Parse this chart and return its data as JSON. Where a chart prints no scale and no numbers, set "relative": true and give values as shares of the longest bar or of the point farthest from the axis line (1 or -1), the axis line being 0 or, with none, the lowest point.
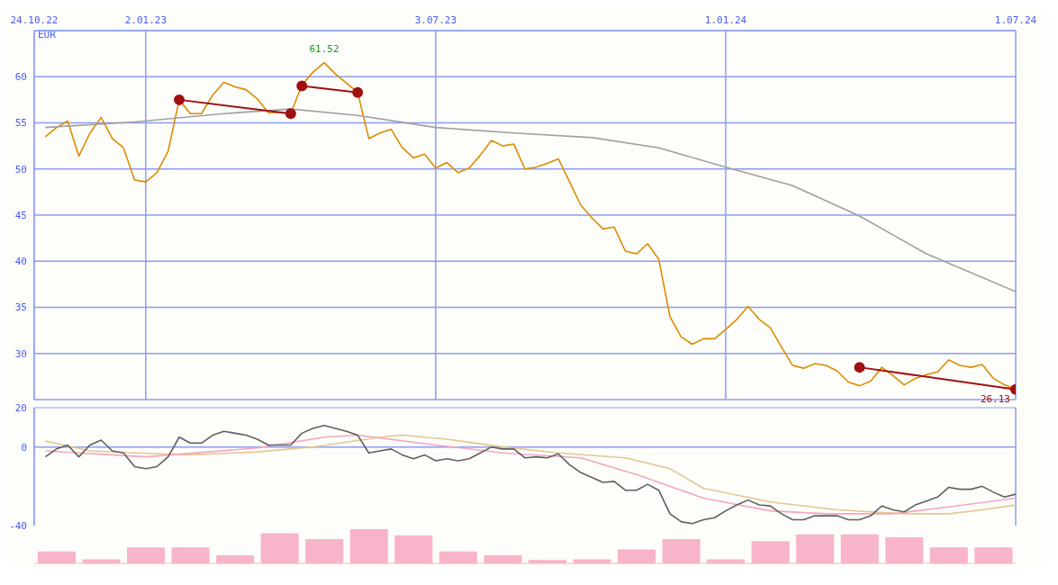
{
  "chart_data": [
    {
      "type": "line",
      "ylabel": "EUR",
      "xlim": [
        "2022-10-24",
        "2024-07-01"
      ],
      "xticks": [
        {
          "value": "2022-10-24",
          "label": "24.10.22"
        },
        {
          "value": "2023-01-02",
          "label": "2.01.23"
        },
        {
          "value": "2023-07-03",
          "label": "3.07.23"
        },
        {
          "value": "2024-01-01",
          "label": "1.01.24"
        },
        {
          "value": "2024-07-01",
          "label": "1.07.24"
        }
      ],
      "ylim": [
        25,
        65
      ],
      "yticks": [
        30,
        35,
        40,
        45,
        50,
        55,
        60
      ],
      "grid": true,
      "legend": false,
      "x": [
        "2022-10-31",
        "2022-11-07",
        "2022-11-14",
        "2022-11-21",
        "2022-11-28",
        "2022-12-05",
        "2022-12-12",
        "2022-12-19",
        "2022-12-26",
        "2023-01-02",
        "2023-01-09",
        "2023-01-16",
        "2023-01-23",
        "2023-01-30",
        "2023-02-06",
        "2023-02-13",
        "2023-02-20",
        "2023-02-27",
        "2023-03-06",
        "2023-03-13",
        "2023-03-20",
        "2023-03-27",
        "2023-04-03",
        "2023-04-10",
        "2023-04-17",
        "2023-04-24",
        "2023-05-01",
        "2023-05-08",
        "2023-05-15",
        "2023-05-22",
        "2023-05-29",
        "2023-06-05",
        "2023-06-12",
        "2023-06-19",
        "2023-06-26",
        "2023-07-03",
        "2023-07-10",
        "2023-07-17",
        "2023-07-24",
        "2023-07-31",
        "2023-08-07",
        "2023-08-14",
        "2023-08-21",
        "2023-08-28",
        "2023-09-04",
        "2023-09-11",
        "2023-09-18",
        "2023-09-25",
        "2023-10-02",
        "2023-10-09",
        "2023-10-16",
        "2023-10-23",
        "2023-10-30",
        "2023-11-06",
        "2023-11-13",
        "2023-11-20",
        "2023-11-27",
        "2023-12-04",
        "2023-12-11",
        "2023-12-18",
        "2023-12-25",
        "2024-01-01",
        "2024-01-08",
        "2024-01-15",
        "2024-01-22",
        "2024-01-29",
        "2024-02-05",
        "2024-02-12",
        "2024-02-19",
        "2024-02-26",
        "2024-03-04",
        "2024-03-11",
        "2024-03-18",
        "2024-03-25",
        "2024-04-01",
        "2024-04-08",
        "2024-04-15",
        "2024-04-22",
        "2024-04-29",
        "2024-05-06",
        "2024-05-13",
        "2024-05-20",
        "2024-05-27",
        "2024-06-03",
        "2024-06-10",
        "2024-06-17",
        "2024-06-24",
        "2024-07-01"
      ],
      "series": [
        {
          "color": "#dd8c00",
          "marker": "none",
          "values": [
            53.5,
            54.5,
            55.2,
            51.4,
            53.9,
            55.6,
            53.3,
            52.3,
            48.8,
            48.6,
            49.6,
            51.9,
            57.5,
            56.0,
            56.0,
            58.0,
            59.4,
            58.9,
            58.6,
            57.6,
            56.1,
            56.1,
            56.0,
            59.1,
            60.5,
            61.52,
            60.3,
            59.3,
            58.3,
            53.3,
            53.9,
            54.3,
            52.3,
            51.2,
            51.6,
            50.1,
            50.7,
            49.6,
            50.1,
            51.5,
            53.1,
            52.5,
            52.7,
            50.0,
            50.2,
            50.6,
            51.1,
            48.6,
            46.1,
            44.7,
            43.5,
            43.7,
            41.1,
            40.8,
            41.9,
            40.2,
            34.0,
            31.8,
            31.0,
            31.6,
            31.6,
            32.6,
            33.7,
            35.1,
            33.7,
            32.8,
            30.7,
            28.7,
            28.4,
            28.9,
            28.7,
            28.1,
            26.9,
            26.5,
            27.0,
            28.5,
            27.6,
            26.6,
            27.3,
            27.7,
            28.0,
            29.3,
            28.7,
            28.5,
            28.8,
            27.3,
            26.6,
            26.13
          ],
          "value_labels": [
            null,
            null,
            null,
            null,
            null,
            null,
            null,
            null,
            null,
            null,
            null,
            null,
            null,
            null,
            null,
            null,
            null,
            null,
            null,
            null,
            null,
            null,
            null,
            null,
            null,
            "61.52",
            null,
            null,
            null,
            null,
            null,
            null,
            null,
            null,
            null,
            null,
            null,
            null,
            null,
            null,
            null,
            null,
            null,
            null,
            null,
            null,
            null,
            null,
            null,
            null,
            null,
            null,
            null,
            null,
            null,
            null,
            null,
            null,
            null,
            null,
            null,
            null,
            null,
            null,
            null,
            null,
            null,
            null,
            null,
            null,
            null,
            null,
            null,
            null,
            null,
            null,
            null,
            null,
            null,
            null,
            null,
            null,
            null,
            null,
            null,
            null,
            null,
            "26.13"
          ]
        },
        {
          "color": "#a0a0a0",
          "marker": "none",
          "x": [
            "2022-10-31",
            "2022-12-26",
            "2023-02-20",
            "2023-04-03",
            "2023-05-15",
            "2023-07-03",
            "2023-08-21",
            "2023-10-09",
            "2023-11-20",
            "2024-01-01",
            "2024-02-12",
            "2024-03-25",
            "2024-05-06",
            "2024-07-01"
          ],
          "values": [
            54.5,
            55.1,
            56.0,
            56.5,
            55.8,
            54.5,
            53.9,
            53.4,
            52.3,
            50.2,
            48.2,
            44.9,
            40.8,
            36.7
          ]
        },
        {
          "color": "#a01010",
          "marker": "circle",
          "x": [
            "2023-01-23",
            "2023-04-03"
          ],
          "values": [
            57.5,
            56.0
          ]
        },
        {
          "color": "#a01010",
          "marker": "circle",
          "x": [
            "2023-04-10",
            "2023-05-15"
          ],
          "values": [
            59.0,
            58.3
          ]
        },
        {
          "color": "#a01010",
          "marker": "circle",
          "x": [
            "2024-03-25",
            "2024-07-01"
          ],
          "values": [
            28.5,
            26.1
          ]
        }
      ]
    },
    {
      "type": "line",
      "xlim": [
        "2022-10-24",
        "2024-07-01"
      ],
      "xticks": [
        {
          "value": "2023-01-02",
          "label": null
        },
        {
          "value": "2023-07-03",
          "label": null
        },
        {
          "value": "2024-01-01",
          "label": null
        }
      ],
      "ylim": [
        -40,
        20
      ],
      "yticks": [
        -40,
        0,
        20
      ],
      "grid": "x",
      "ref_lines": [
        {
          "axis": "y",
          "value": 0,
          "color": "#8c9cf0"
        }
      ],
      "legend": false,
      "tick_labels": "y",
      "x": [
        "2022-10-31",
        "2022-11-07",
        "2022-11-14",
        "2022-11-21",
        "2022-11-28",
        "2022-12-05",
        "2022-12-12",
        "2022-12-19",
        "2022-12-26",
        "2023-01-02",
        "2023-01-09",
        "2023-01-16",
        "2023-01-23",
        "2023-01-30",
        "2023-02-06",
        "2023-02-13",
        "2023-02-20",
        "2023-02-27",
        "2023-03-06",
        "2023-03-13",
        "2023-03-20",
        "2023-03-27",
        "2023-04-03",
        "2023-04-10",
        "2023-04-17",
        "2023-04-24",
        "2023-05-01",
        "2023-05-08",
        "2023-05-15",
        "2023-05-22",
        "2023-05-29",
        "2023-06-05",
        "2023-06-12",
        "2023-06-19",
        "2023-06-26",
        "2023-07-03",
        "2023-07-10",
        "2023-07-17",
        "2023-07-24",
        "2023-07-31",
        "2023-08-07",
        "2023-08-14",
        "2023-08-21",
        "2023-08-28",
        "2023-09-04",
        "2023-09-11",
        "2023-09-18",
        "2023-09-25",
        "2023-10-02",
        "2023-10-09",
        "2023-10-16",
        "2023-10-23",
        "2023-10-30",
        "2023-11-06",
        "2023-11-13",
        "2023-11-20",
        "2023-11-27",
        "2023-12-04",
        "2023-12-11",
        "2023-12-18",
        "2023-12-25",
        "2024-01-01",
        "2024-01-08",
        "2024-01-15",
        "2024-01-22",
        "2024-01-29",
        "2024-02-05",
        "2024-02-12",
        "2024-02-19",
        "2024-02-26",
        "2024-03-04",
        "2024-03-11",
        "2024-03-18",
        "2024-03-25",
        "2024-04-01",
        "2024-04-08",
        "2024-04-15",
        "2024-04-22",
        "2024-04-29",
        "2024-05-06",
        "2024-05-13",
        "2024-05-20",
        "2024-05-27",
        "2024-06-03",
        "2024-06-10",
        "2024-06-17",
        "2024-06-24",
        "2024-07-01"
      ],
      "series": [
        {
          "color": "#e2c890",
          "x": [
            "2022-10-31",
            "2022-11-28",
            "2022-12-26",
            "2023-01-30",
            "2023-03-13",
            "2023-04-17",
            "2023-05-29",
            "2023-06-12",
            "2023-07-10",
            "2023-08-14",
            "2023-09-18",
            "2023-10-30",
            "2023-11-27",
            "2023-12-18",
            "2024-01-29",
            "2024-03-11",
            "2024-04-22",
            "2024-05-20",
            "2024-06-10",
            "2024-07-01"
          ],
          "values": [
            3,
            -2,
            -3,
            -4,
            -2.5,
            0,
            5,
            6,
            4,
            0,
            -3,
            -5.5,
            -11,
            -21,
            -28,
            -32,
            -34,
            -34,
            -32,
            -29.5
          ]
        },
        {
          "color": "#f4a6c0",
          "x": [
            "2022-10-31",
            "2023-01-02",
            "2023-03-13",
            "2023-04-24",
            "2023-05-15",
            "2023-07-03",
            "2023-08-14",
            "2023-10-02",
            "2023-11-06",
            "2023-12-18",
            "2024-01-29",
            "2024-03-04",
            "2024-04-15",
            "2024-05-20",
            "2024-07-01"
          ],
          "values": [
            -2,
            -5,
            -0.5,
            5,
            6,
            1,
            -3,
            -5.5,
            -14,
            -26,
            -32.5,
            -34,
            -34,
            -30.5,
            -26
          ]
        },
        {
          "color": "#606060",
          "values": [
            -5,
            -1,
            1,
            -5,
            1,
            3.5,
            -2,
            -3,
            -10,
            -11,
            -10,
            -5,
            5,
            2,
            2,
            6,
            8,
            7,
            6,
            4,
            1,
            1,
            1,
            7,
            9.5,
            11,
            9.5,
            8,
            6,
            -3,
            -2,
            -1,
            -4,
            -6,
            -4,
            -7,
            -6,
            -7,
            -6,
            -3,
            0,
            -1,
            -1,
            -5.5,
            -5,
            -5.5,
            -3.5,
            -9,
            -13,
            -15.5,
            -18,
            -17.5,
            -22,
            -22,
            -19,
            -22,
            -34,
            -38,
            -39,
            -37,
            -36,
            -32.5,
            -29.5,
            -27,
            -29.5,
            -30,
            -34,
            -37,
            -37,
            -35,
            -35,
            -35,
            -37,
            -37,
            -35,
            -30,
            -32,
            -33,
            -29.5,
            -27.5,
            -25.5,
            -20.5,
            -21.5,
            -21.5,
            -20,
            -23,
            -25.5,
            -24
          ]
        }
      ]
    },
    {
      "type": "bar",
      "relative": true,
      "tick_labels": false,
      "grid": false,
      "legend": false,
      "categories": [
        null,
        null,
        null,
        null,
        null,
        null,
        null,
        null,
        null,
        null,
        null,
        null,
        null,
        null,
        null,
        null,
        null,
        null,
        null,
        null,
        null,
        null
      ],
      "color": "#f8b4c8",
      "values": [
        0.35,
        0.12,
        0.47,
        0.47,
        0.24,
        0.88,
        0.71,
        1,
        0.82,
        0.35,
        0.24,
        0.1,
        0.12,
        0.41,
        0.71,
        0.12,
        0.65,
        0.85,
        0.85,
        0.76,
        0.47,
        0.47
      ]
    }
  ]
}
